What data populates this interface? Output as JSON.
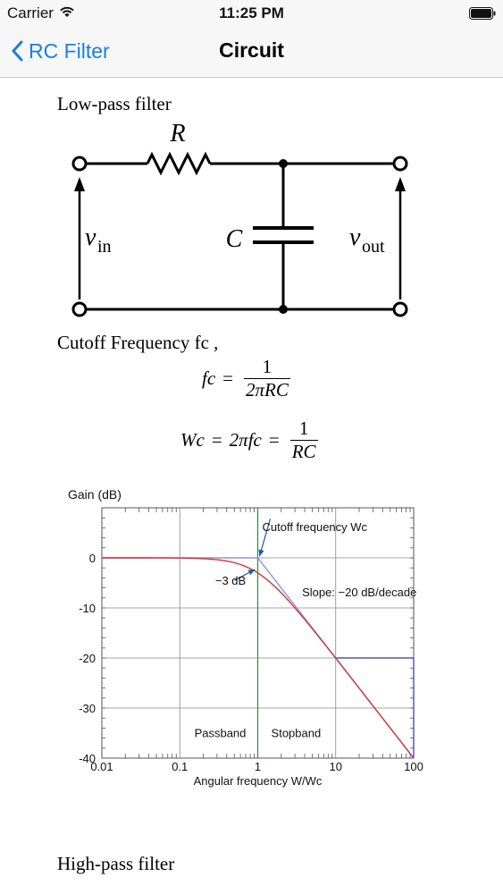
{
  "status_bar": {
    "carrier": "Carrier",
    "time": "11:25 PM"
  },
  "nav": {
    "back_label": "RC Filter",
    "title": "Circuit"
  },
  "content": {
    "low_pass_heading": "Low-pass filter",
    "circuit": {
      "resistor": "R",
      "capacitor": "C",
      "v_in": "v",
      "v_in_sub": "in",
      "v_out": "v",
      "v_out_sub": "out"
    },
    "cutoff_label": "Cutoff Frequency fc ,",
    "eq1": {
      "lhs": "fc",
      "equals": "=",
      "num": "1",
      "den": "2πRC"
    },
    "eq2": {
      "lhs": "Wc",
      "equals1": "=",
      "mid": "2πfc",
      "equals2": "=",
      "num": "1",
      "den": "RC"
    },
    "high_pass_heading": "High-pass filter"
  },
  "chart_data": {
    "type": "line",
    "title": "",
    "ylabel": "Gain (dB)",
    "xlabel": "Angular frequency W/Wc",
    "xscale": "log",
    "xlim": [
      0.01,
      100
    ],
    "ylim": [
      -40,
      10
    ],
    "x_ticks": [
      0.01,
      0.1,
      1,
      10,
      100
    ],
    "x_tick_labels": [
      "0.01",
      "0.1",
      "1",
      "10",
      "100"
    ],
    "y_ticks": [
      0,
      -10,
      -20,
      -30,
      -40
    ],
    "y_tick_labels": [
      "0",
      "-10",
      "-20",
      "-30",
      "-40"
    ],
    "grid": true,
    "series": [
      {
        "color": "#d0343c",
        "x": [
          0.01,
          0.1,
          0.3,
          0.5,
          0.7,
          1,
          1.5,
          2,
          3,
          5,
          10,
          20,
          50,
          100
        ],
        "values": [
          0,
          -0.04,
          -0.37,
          -0.97,
          -1.73,
          -3.01,
          -5.12,
          -6.99,
          -10.0,
          -14.15,
          -20.04,
          -26.03,
          -33.98,
          -40.0
        ]
      },
      {
        "color": "#9a8fd0",
        "x": [
          0.01,
          1,
          100
        ],
        "values": [
          0,
          0,
          -40
        ]
      }
    ],
    "annotations": [
      {
        "text": "Cutoff frequency Wc"
      },
      {
        "text": "−3 dB"
      },
      {
        "text": "Slope: −20 dB/decade"
      },
      {
        "text": "Passband"
      },
      {
        "text": "Stopband"
      }
    ],
    "cutoff_line_x": 1,
    "cutoff_line_color": "#2e8b3e",
    "bracket_color": "#2b35b5",
    "bracket": {
      "x_from": 10,
      "x_to": 100,
      "y_from": -20,
      "y_to": -40
    }
  }
}
